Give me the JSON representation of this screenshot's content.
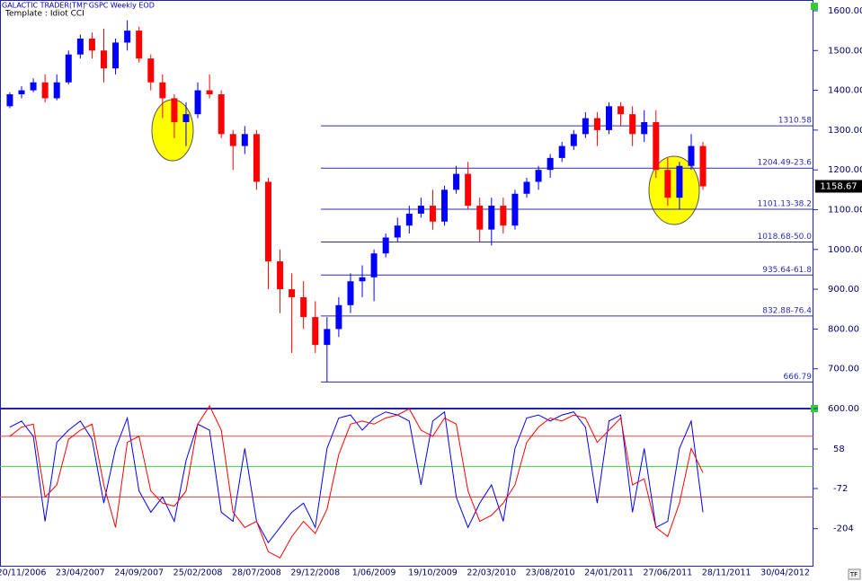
{
  "header": {
    "title": "GALACTIC TRADER(TM)",
    "symbol": "^GSPC Weekly EOD",
    "template": "Template : Idiot CCI"
  },
  "corner_button": "TF",
  "chart_data": [
    {
      "type": "candlestick",
      "categories": [
        null,
        "20/11/2006",
        null,
        null,
        null,
        null,
        "23/04/2007",
        null,
        null,
        null,
        null,
        "24/09/2007",
        null,
        null,
        null,
        null,
        "25/02/2008",
        null,
        null,
        null,
        null,
        "28/07/2008",
        null,
        null,
        null,
        null,
        "29/12/2008",
        null,
        null,
        null,
        null,
        "1/06/2009",
        null,
        null,
        null,
        null,
        "19/10/2009",
        null,
        null,
        null,
        null,
        "22/03/2010",
        null,
        null,
        null,
        null,
        "23/08/2010",
        null,
        null,
        null,
        null,
        "24/01/2011",
        null,
        null,
        null,
        null,
        "27/06/2011",
        null,
        null,
        null,
        null,
        "28/11/2011",
        null,
        null,
        null,
        null,
        "30/04/2012"
      ],
      "open": [
        1360,
        1390,
        1400,
        1420,
        1380,
        1420,
        1490,
        1530,
        1500,
        1455,
        1520,
        1550,
        1480,
        1420,
        1380,
        1320,
        1340,
        1400,
        1390,
        1290,
        1260,
        1290,
        1170,
        970,
        900,
        880,
        830,
        760,
        800,
        860,
        920,
        930,
        990,
        1030,
        1060,
        1090,
        1110,
        1070,
        1150,
        1190,
        1110,
        1050,
        1110,
        1060,
        1140,
        1170,
        1200,
        1230,
        1260,
        1290,
        1330,
        1300,
        1360,
        1340,
        1290,
        1320,
        1200,
        1130,
        1210,
        1260,
        null,
        null,
        null,
        null,
        null,
        null,
        null
      ],
      "high": [
        1395,
        1410,
        1430,
        1440,
        1440,
        1500,
        1540,
        1545,
        1555,
        1530,
        1576,
        1560,
        1490,
        1440,
        1390,
        1370,
        1420,
        1440,
        1400,
        1300,
        1310,
        1300,
        1180,
        1000,
        940,
        920,
        870,
        830,
        880,
        940,
        960,
        1000,
        1040,
        1080,
        1110,
        1130,
        1150,
        1160,
        1210,
        1220,
        1130,
        1130,
        1130,
        1150,
        1180,
        1210,
        1240,
        1270,
        1300,
        1345,
        1345,
        1370,
        1370,
        1360,
        1350,
        1350,
        1230,
        1220,
        1290,
        1270,
        null,
        null,
        null,
        null,
        null,
        null,
        null
      ],
      "low": [
        1355,
        1380,
        1395,
        1370,
        1375,
        1415,
        1480,
        1480,
        1420,
        1440,
        1500,
        1470,
        1400,
        1330,
        1280,
        1260,
        1330,
        1380,
        1280,
        1200,
        1240,
        1150,
        900,
        840,
        740,
        800,
        740,
        667,
        780,
        840,
        880,
        870,
        980,
        1020,
        1040,
        1080,
        1050,
        1060,
        1140,
        1100,
        1020,
        1010,
        1040,
        1050,
        1130,
        1150,
        1180,
        1220,
        1250,
        1280,
        1260,
        1290,
        1310,
        1260,
        1270,
        1180,
        1110,
        1100,
        1200,
        1150,
        null,
        null,
        null,
        null,
        null,
        null,
        null
      ],
      "close": [
        1390,
        1400,
        1420,
        1380,
        1420,
        1490,
        1530,
        1500,
        1455,
        1520,
        1550,
        1480,
        1420,
        1380,
        1320,
        1340,
        1400,
        1390,
        1290,
        1260,
        1290,
        1170,
        970,
        900,
        880,
        830,
        760,
        800,
        860,
        920,
        930,
        990,
        1030,
        1060,
        1090,
        1110,
        1070,
        1150,
        1190,
        1110,
        1050,
        1110,
        1060,
        1140,
        1170,
        1200,
        1230,
        1260,
        1290,
        1330,
        1300,
        1360,
        1340,
        1290,
        1320,
        1200,
        1130,
        1210,
        1260,
        1158.67,
        null,
        null,
        null,
        null,
        null,
        null,
        null
      ],
      "up_color": "#0000ff",
      "down_color": "#ff0000",
      "ylim": [
        600,
        1627
      ],
      "yticks": [
        {
          "value": 600,
          "label": "600.00"
        },
        {
          "value": 700,
          "label": "700.00"
        },
        {
          "value": 800,
          "label": "800.00"
        },
        {
          "value": 900,
          "label": "900.00"
        },
        {
          "value": 1000,
          "label": "1000.00"
        },
        {
          "value": 1100,
          "label": "1100.00"
        },
        {
          "value": 1200,
          "label": "1200.00"
        },
        {
          "value": 1300,
          "label": "1300.00"
        },
        {
          "value": 1400,
          "label": "1400.00"
        },
        {
          "value": 1500,
          "label": "1500.00"
        },
        {
          "value": 1600,
          "label": "1600.00"
        }
      ],
      "levels": [
        1310.58,
        {
          "value": 1204.49,
          "label": "1204.49-23.6"
        },
        {
          "value": 1101.13,
          "label": "1101.13-38.2"
        },
        {
          "value": 1018.68,
          "label": "1018.68-50.0"
        },
        {
          "value": 935.64,
          "label": "935.64-61.8"
        },
        {
          "value": 832.88,
          "label": "832.88-76.4"
        },
        666.79
      ],
      "level_color": "#2b2bb0"
    },
    {
      "type": "line",
      "series": [
        {
          "color": "#0000ff",
          "values": [
            130,
            150,
            100,
            -180,
            80,
            120,
            150,
            90,
            -120,
            60,
            160,
            -80,
            -150,
            -100,
            -180,
            20,
            140,
            120,
            -150,
            -180,
            60,
            -180,
            -250,
            -200,
            -150,
            -120,
            -200,
            60,
            160,
            170,
            120,
            160,
            180,
            170,
            150,
            -60,
            150,
            180,
            -100,
            -200,
            -120,
            -60,
            -180,
            60,
            160,
            170,
            150,
            170,
            180,
            130,
            -120,
            150,
            170,
            -150,
            60,
            -200,
            -180,
            60,
            150,
            -150,
            null,
            null,
            null,
            null,
            null,
            null,
            null
          ]
        },
        {
          "color": "#ff0000",
          "values": [
            100,
            130,
            140,
            -100,
            -60,
            90,
            120,
            140,
            -60,
            -200,
            80,
            100,
            -80,
            -120,
            -130,
            -80,
            140,
            200,
            120,
            -150,
            -200,
            -180,
            -280,
            -300,
            -230,
            -180,
            -220,
            -140,
            40,
            140,
            150,
            140,
            160,
            170,
            190,
            120,
            100,
            160,
            140,
            -80,
            -180,
            -160,
            -120,
            -60,
            80,
            130,
            160,
            150,
            170,
            160,
            80,
            120,
            160,
            -60,
            -40,
            -200,
            -230,
            -120,
            60,
            -20,
            null,
            null,
            null,
            null,
            null,
            null,
            null
          ]
        }
      ],
      "ylim": [
        -326,
        191
      ],
      "yticks": [
        58,
        -72,
        -204
      ],
      "levels": [
        {
          "value": 100,
          "color": "#ff4040"
        },
        {
          "value": 0,
          "color": "#33dd33"
        },
        {
          "value": -100,
          "color": "#ff4040"
        }
      ]
    }
  ]
}
